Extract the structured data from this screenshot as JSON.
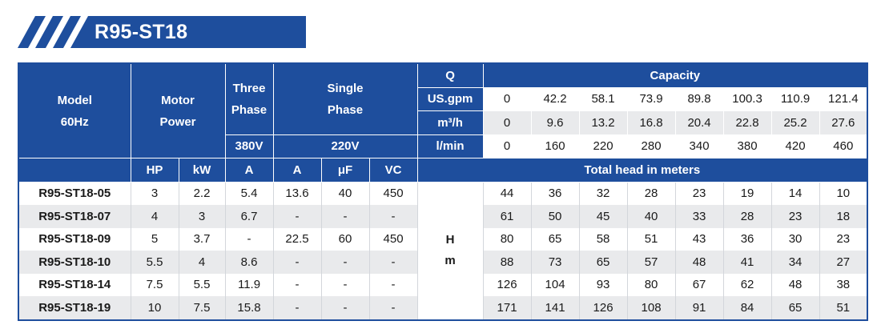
{
  "title": "R95-ST18",
  "header": {
    "model": [
      "Model",
      "60Hz"
    ],
    "motor_power": [
      "Motor",
      "Power"
    ],
    "three_phase": [
      "Three",
      "Phase"
    ],
    "single_phase": [
      "Single",
      "Phase"
    ],
    "volt_380": "380V",
    "volt_220": "220V",
    "q": "Q",
    "capacity": "Capacity",
    "units": [
      "US.gpm",
      "m³/h",
      "l/min"
    ],
    "sub": [
      "HP",
      "kW",
      "A",
      "A",
      "μF",
      "VC"
    ],
    "total_head": "Total head in meters",
    "hm": [
      "H",
      "m"
    ]
  },
  "capacity": {
    "usgpm": [
      "0",
      "42.2",
      "58.1",
      "73.9",
      "89.8",
      "100.3",
      "110.9",
      "121.4"
    ],
    "m3h": [
      "0",
      "9.6",
      "13.2",
      "16.8",
      "20.4",
      "22.8",
      "25.2",
      "27.6"
    ],
    "lmin": [
      "0",
      "160",
      "220",
      "280",
      "340",
      "380",
      "420",
      "460"
    ]
  },
  "rows": [
    {
      "model": "R95-ST18-05",
      "hp": "3",
      "kw": "2.2",
      "a3": "5.4",
      "a1": "13.6",
      "uf": "40",
      "vc": "450",
      "heads": [
        "44",
        "36",
        "32",
        "28",
        "23",
        "19",
        "14",
        "10"
      ]
    },
    {
      "model": "R95-ST18-07",
      "hp": "4",
      "kw": "3",
      "a3": "6.7",
      "a1": "-",
      "uf": "-",
      "vc": "-",
      "heads": [
        "61",
        "50",
        "45",
        "40",
        "33",
        "28",
        "23",
        "18"
      ]
    },
    {
      "model": "R95-ST18-09",
      "hp": "5",
      "kw": "3.7",
      "a3": "-",
      "a1": "22.5",
      "uf": "60",
      "vc": "450",
      "heads": [
        "80",
        "65",
        "58",
        "51",
        "43",
        "36",
        "30",
        "23"
      ]
    },
    {
      "model": "R95-ST18-10",
      "hp": "5.5",
      "kw": "4",
      "a3": "8.6",
      "a1": "-",
      "uf": "-",
      "vc": "-",
      "heads": [
        "88",
        "73",
        "65",
        "57",
        "48",
        "41",
        "34",
        "27"
      ]
    },
    {
      "model": "R95-ST18-14",
      "hp": "7.5",
      "kw": "5.5",
      "a3": "11.9",
      "a1": "-",
      "uf": "-",
      "vc": "-",
      "heads": [
        "126",
        "104",
        "93",
        "80",
        "67",
        "62",
        "48",
        "38"
      ]
    },
    {
      "model": "R95-ST18-19",
      "hp": "10",
      "kw": "7.5",
      "a3": "15.8",
      "a1": "-",
      "uf": "-",
      "vc": "-",
      "heads": [
        "171",
        "141",
        "126",
        "108",
        "91",
        "84",
        "65",
        "51"
      ]
    }
  ],
  "colors": {
    "brand_blue": "#1e4e9d",
    "row_alt": "#e9eaec"
  }
}
